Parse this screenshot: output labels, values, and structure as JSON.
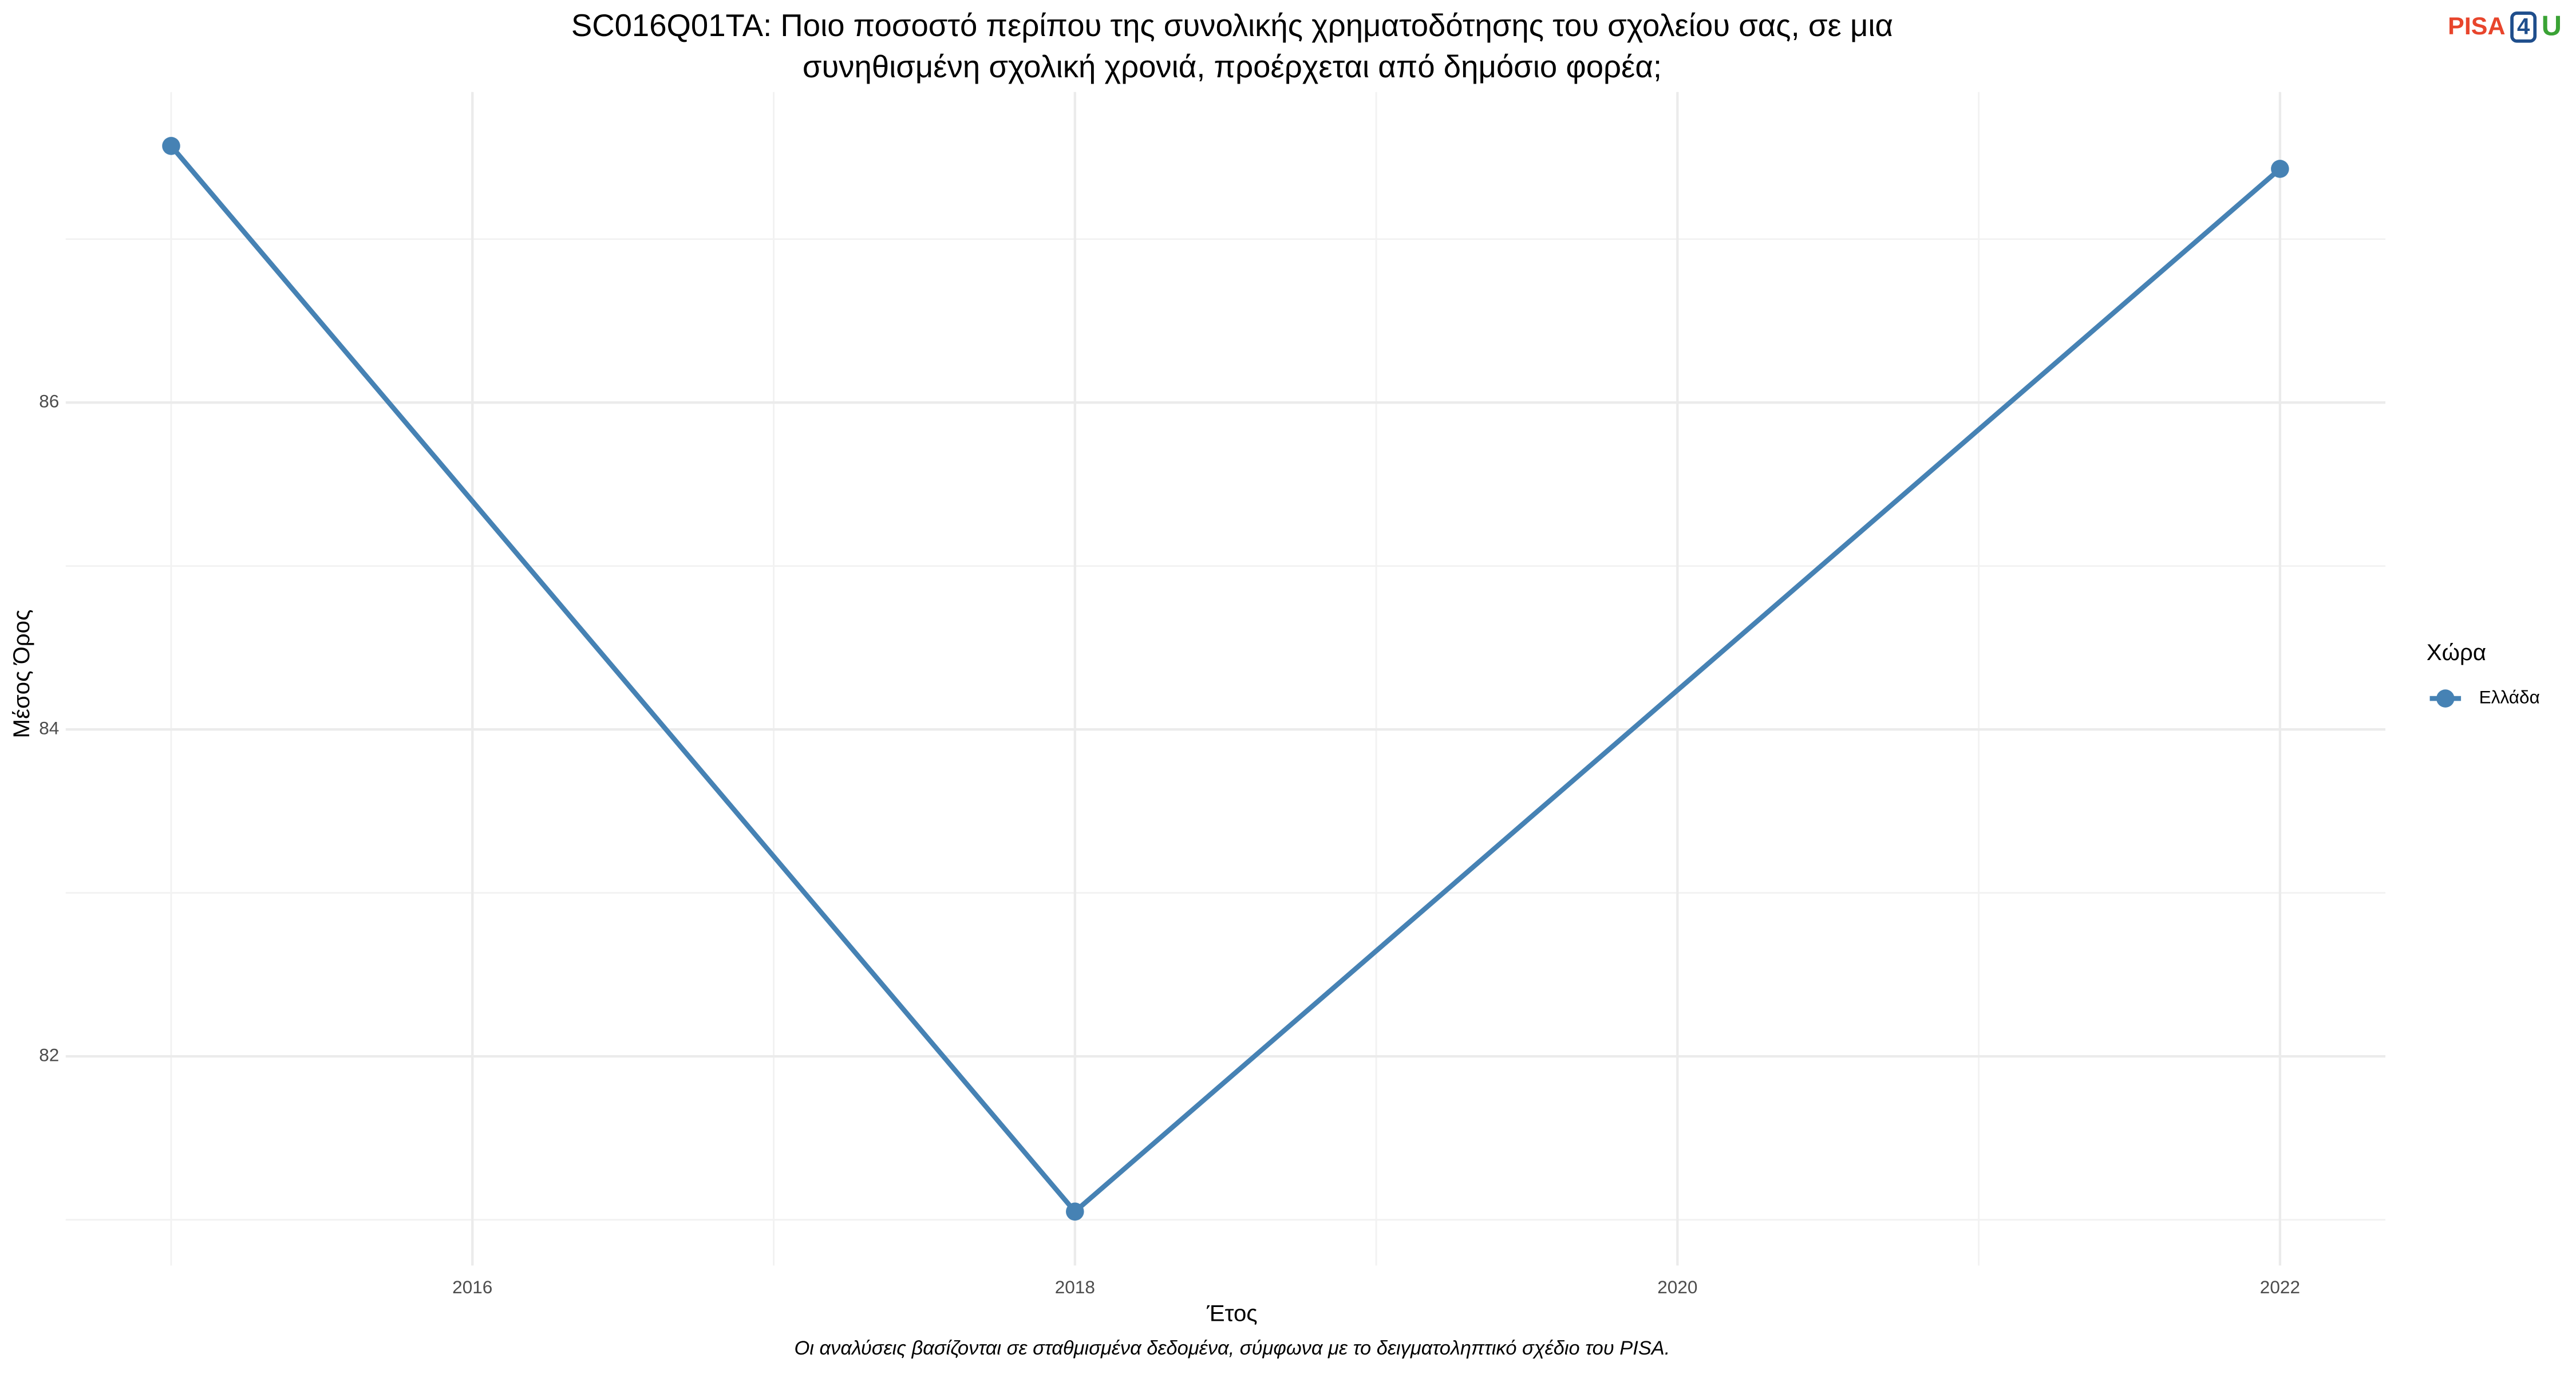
{
  "chart_data": {
    "type": "line",
    "title": [
      "SC016Q01TA: Ποιο ποσοστό περίπου της συνολικής χρηματοδότησης του σχολείου σας, σε μια",
      "συνηθισμένη σχολική χρονιά, προέρχεται από δημόσιο φορέα;"
    ],
    "x_label": "Έτος",
    "y_label": "Μέσος Όρος",
    "caption": "Οι αναλύσεις βασίζονται σε σταθμισμένα δεδομένα, σύμφωνα με το δειγματοληπτικό σχέδιο του PISA.",
    "logo": {
      "part1": "PISA",
      "part2": "4",
      "part3": "U"
    },
    "x": [
      2015,
      2018,
      2022
    ],
    "series": [
      {
        "name": "Ελλάδα",
        "color": "#4682b4",
        "values": [
          87.57,
          81.05,
          87.43
        ]
      }
    ],
    "legend_title": "Χώρα",
    "legend": "right",
    "xlim": [
      2014.65,
      2022.35
    ],
    "xticks": [
      2016,
      2018,
      2020,
      2022
    ],
    "minor_xticks": [
      2015,
      2017,
      2019,
      2021
    ],
    "ylim": [
      80.72,
      87.9
    ],
    "yticks": [
      82,
      84,
      86
    ],
    "minor_yticks": [
      81,
      83,
      85,
      87
    ],
    "grid": true
  }
}
